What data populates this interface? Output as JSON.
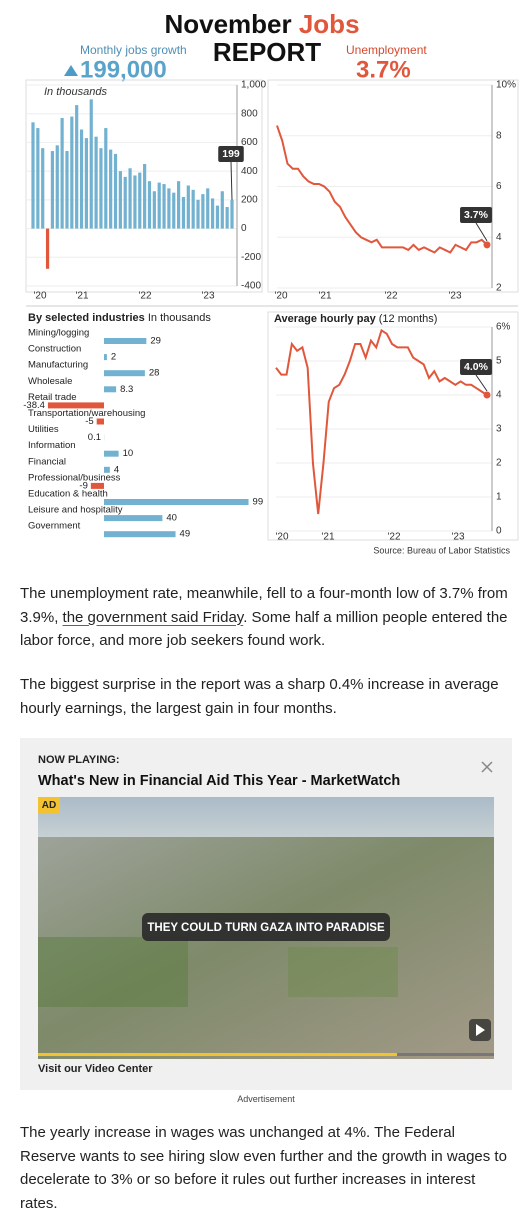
{
  "header": {
    "title_1": "November",
    "title_2": "Jobs",
    "title_3": "REPORT"
  },
  "jobs": {
    "label": "Monthly jobs growth",
    "headline": "199,000",
    "note": "In thousands",
    "callout": "199",
    "color": "#72b2d0",
    "negative_color": "#e0573c",
    "values": [
      740,
      700,
      560,
      -280,
      540,
      580,
      770,
      540,
      780,
      860,
      690,
      630,
      900,
      640,
      560,
      700,
      550,
      520,
      400,
      360,
      420,
      370,
      390,
      450,
      330,
      260,
      320,
      310,
      280,
      250,
      330,
      220,
      300,
      270,
      200,
      240,
      280,
      210,
      160,
      260,
      150,
      199
    ],
    "ylim": [
      -400,
      1000
    ],
    "yticks": [
      {
        "value": 1000,
        "label": "1,000"
      },
      800,
      600,
      400,
      200,
      0,
      -200,
      -400
    ],
    "xticks": [
      "'20",
      "'21",
      "'22",
      "'23"
    ]
  },
  "unemployment": {
    "label": "Unemployment",
    "headline": "3.7%",
    "callout": "3.7%",
    "color": "#e0573c",
    "values": [
      8.4,
      7.8,
      6.9,
      6.7,
      6.7,
      6.4,
      6.2,
      6.1,
      6.1,
      6.0,
      5.8,
      5.4,
      5.2,
      4.8,
      4.5,
      4.2,
      4.0,
      3.9,
      3.8,
      3.9,
      3.6,
      3.6,
      3.6,
      3.6,
      3.6,
      3.5,
      3.7,
      3.5,
      3.6,
      3.5,
      3.4,
      3.6,
      3.5,
      3.4,
      3.7,
      3.6,
      3.5,
      3.8,
      3.8,
      3.9,
      3.7
    ],
    "ylim": [
      2,
      10
    ],
    "yticks": [
      2,
      4,
      6,
      8,
      {
        "value": 10,
        "label": "10%"
      }
    ],
    "xticks": [
      "'20",
      "'21",
      "'22",
      "'23"
    ]
  },
  "industries": {
    "title": "By selected industries",
    "note": "In thousands",
    "color": "#72b2d0",
    "negative_color": "#e0573c",
    "categories": [
      "Mining/logging",
      "Construction",
      "Manufacturing",
      "Wholesale",
      "Retail trade",
      "Transportation/warehousing",
      "Utilities",
      "Information",
      "Financial",
      "Professional/business",
      "Education & health",
      "Leisure and hospitality",
      "Government"
    ],
    "values": [
      29,
      2,
      28,
      8.3,
      -38.4,
      -5,
      0.1,
      10,
      4,
      -9,
      99,
      40,
      49
    ]
  },
  "pay": {
    "title": "Average hourly pay",
    "subtitle": "(12 months)",
    "callout": "4.0%",
    "color": "#e0573c",
    "values": [
      4.8,
      4.6,
      4.6,
      5.5,
      5.3,
      5.4,
      4.8,
      2.0,
      0.5,
      2.0,
      3.8,
      4.2,
      4.3,
      4.6,
      5.0,
      5.5,
      5.5,
      5.1,
      5.6,
      5.4,
      5.9,
      5.8,
      5.5,
      5.4,
      5.4,
      5.4,
      5.1,
      5.0,
      4.9,
      4.5,
      4.7,
      4.4,
      4.5,
      4.4,
      4.3,
      4.4,
      4.3,
      4.3,
      4.2,
      4.1,
      4.0
    ],
    "ylim": [
      0,
      6
    ],
    "yticks": [
      0,
      1,
      2,
      3,
      4,
      5,
      {
        "value": 6,
        "label": "6%"
      }
    ],
    "xticks": [
      "'20",
      "'21",
      "'22",
      "'23"
    ],
    "source": "Source: Bureau of Labor Statistics"
  },
  "article": {
    "paragraphs": [
      [
        "The unemployment rate, meanwhile, fell to a four-month low of 3.7% from 3.9%, ",
        "the government said Friday",
        ". Some half a million people entered the labor force, and more job seekers found work."
      ],
      [
        "The biggest surprise in the report was a sharp 0.4% increase in average hourly earnings, the largest gain in four months."
      ]
    ],
    "closing": "The yearly increase in wages was unchanged at 4%. The Federal Reserve wants to see hiring slow even further and the growth in wages to decelerate to 3% or so before it rules out further increases in interest rates."
  },
  "video": {
    "now_playing": "NOW PLAYING:",
    "title": "What's New in Financial Aid This Year - MarketWatch",
    "ad_badge": "AD",
    "caption": "THEY COULD TURN GAZA INTO PARADISE",
    "link": "Visit our Video Center",
    "label": "Advertisement"
  }
}
